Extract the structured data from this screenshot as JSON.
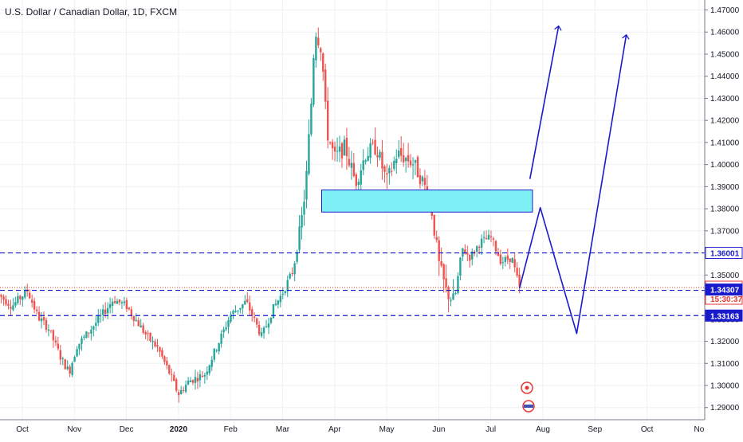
{
  "chart_data": {
    "type": "candlestick",
    "title": "U.S. Dollar / Canadian Dollar, 1D, FXCM",
    "y_range": [
      1.2845,
      1.4745
    ],
    "y_ticks": [
      "1.29000",
      "1.30000",
      "1.31000",
      "1.32000",
      "1.33000",
      "1.34000",
      "1.35000",
      "1.36000",
      "1.37000",
      "1.38000",
      "1.39000",
      "1.40000",
      "1.41000",
      "1.42000",
      "1.43000",
      "1.44000",
      "1.45000",
      "1.46000",
      "1.47000"
    ],
    "x_months": [
      {
        "label": "Oct",
        "t": 0.0
      },
      {
        "label": "Nov",
        "t": 1.0
      },
      {
        "label": "Dec",
        "t": 2.0
      },
      {
        "label": "2020",
        "t": 3.0,
        "bold": true
      },
      {
        "label": "Feb",
        "t": 4.0
      },
      {
        "label": "Mar",
        "t": 5.0
      },
      {
        "label": "Apr",
        "t": 6.0
      },
      {
        "label": "May",
        "t": 7.0
      },
      {
        "label": "Jun",
        "t": 8.0
      },
      {
        "label": "Jul",
        "t": 9.0
      },
      {
        "label": "Aug",
        "t": 10.0
      },
      {
        "label": "Sep",
        "t": 11.0
      },
      {
        "label": "Oct",
        "t": 12.0
      },
      {
        "label": "No",
        "t": 13.0
      }
    ],
    "price_path": [
      [
        -0.45,
        1.341
      ],
      [
        -0.2,
        1.336
      ],
      [
        0.1,
        1.343
      ],
      [
        0.3,
        1.331
      ],
      [
        0.5,
        1.326
      ],
      [
        0.75,
        1.312
      ],
      [
        0.9,
        1.306
      ],
      [
        1.05,
        1.318
      ],
      [
        1.2,
        1.322
      ],
      [
        1.5,
        1.331
      ],
      [
        1.75,
        1.339
      ],
      [
        2.0,
        1.336
      ],
      [
        2.2,
        1.329
      ],
      [
        2.4,
        1.322
      ],
      [
        2.6,
        1.317
      ],
      [
        2.8,
        1.307
      ],
      [
        3.0,
        1.296
      ],
      [
        3.2,
        1.302
      ],
      [
        3.5,
        1.305
      ],
      [
        3.8,
        1.321
      ],
      [
        4.0,
        1.332
      ],
      [
        4.3,
        1.338
      ],
      [
        4.6,
        1.322
      ],
      [
        4.8,
        1.334
      ],
      [
        5.0,
        1.342
      ],
      [
        5.2,
        1.352
      ],
      [
        5.35,
        1.372
      ],
      [
        5.45,
        1.392
      ],
      [
        5.55,
        1.428
      ],
      [
        5.62,
        1.462
      ],
      [
        5.75,
        1.452
      ],
      [
        5.85,
        1.415
      ],
      [
        6.0,
        1.403
      ],
      [
        6.2,
        1.408
      ],
      [
        6.4,
        1.392
      ],
      [
        6.6,
        1.405
      ],
      [
        6.8,
        1.408
      ],
      [
        7.0,
        1.392
      ],
      [
        7.2,
        1.405
      ],
      [
        7.5,
        1.401
      ],
      [
        7.7,
        1.392
      ],
      [
        7.85,
        1.382
      ],
      [
        8.0,
        1.355
      ],
      [
        8.15,
        1.342
      ],
      [
        8.3,
        1.338
      ],
      [
        8.45,
        1.362
      ],
      [
        8.6,
        1.358
      ],
      [
        8.8,
        1.365
      ],
      [
        9.0,
        1.367
      ],
      [
        9.2,
        1.356
      ],
      [
        9.4,
        1.358
      ],
      [
        9.55,
        1.344
      ]
    ],
    "zone": {
      "t0": 5.75,
      "t1": 9.8,
      "y0": 1.3785,
      "y1": 1.3885
    },
    "levels": [
      {
        "value": 1.36001,
        "label": "1.36001",
        "color": "#1a1acd",
        "dash": "6 4",
        "style": "outline"
      },
      {
        "value": 1.34307,
        "label": "1.34307",
        "color": "#1a1acd",
        "dash": "6 4",
        "style": "filled"
      },
      {
        "value": 1.33163,
        "label": "1.33163",
        "color": "#1a1acd",
        "dash": "6 4",
        "style": "filled"
      }
    ],
    "current_price": {
      "value": 1.34434,
      "label": "1.34434",
      "countdown": "15:30:37",
      "color": "#e53935"
    },
    "projections": [
      {
        "points": [
          [
            9.55,
            1.344
          ],
          [
            9.95,
            1.3805
          ],
          [
            10.65,
            1.3235
          ],
          [
            11.6,
            1.4585
          ]
        ],
        "arrow": true
      },
      {
        "points": [
          [
            9.75,
            1.3935
          ],
          [
            10.3,
            1.4625
          ]
        ],
        "arrow": true
      }
    ],
    "colors": {
      "up": "#26a69a",
      "down": "#ef5350",
      "zone_fill": "#7ff0f6",
      "zone_stroke": "#1a1acd",
      "projection": "#1a1acd",
      "axis_text": "#131722",
      "grid": "#eef0f3"
    },
    "grid": true
  }
}
